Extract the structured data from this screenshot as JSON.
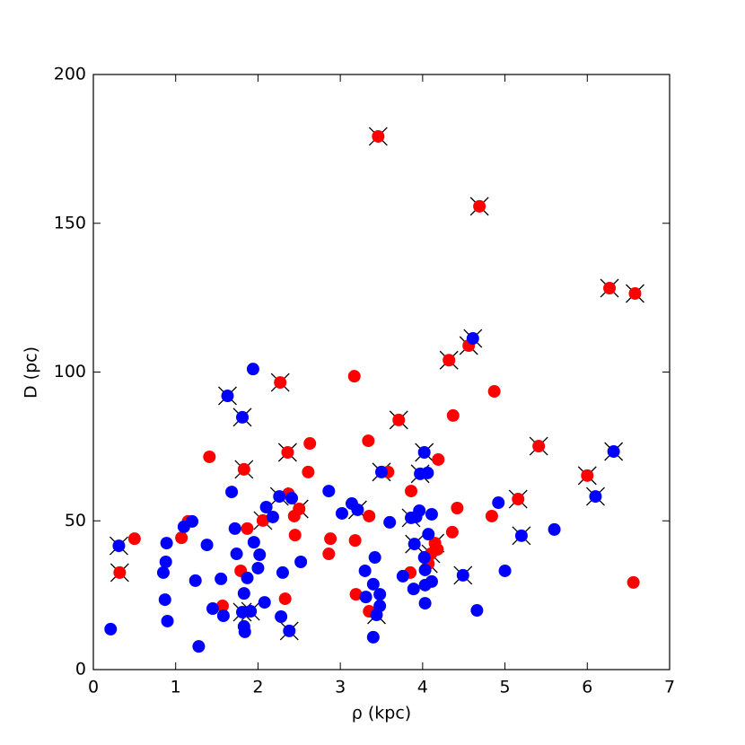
{
  "chart_data": {
    "type": "scatter",
    "xlabel": "ρ (kpc)",
    "ylabel": "D (pc)",
    "xlim": [
      0,
      7
    ],
    "xticks": [
      0,
      1,
      2,
      3,
      4,
      5,
      6,
      7
    ],
    "ylim": [
      0,
      200
    ],
    "yticks": [
      0,
      50,
      100,
      150,
      200
    ],
    "series": [
      {
        "color": "#ff0000",
        "marker": "o",
        "x": [
          0.32,
          0.5,
          1.07,
          1.15,
          1.41,
          1.57,
          1.79,
          1.83,
          1.87,
          2.06,
          2.27,
          2.33,
          2.36,
          2.37,
          2.44,
          2.45,
          2.5,
          2.61,
          2.63,
          2.86,
          2.88,
          3.17,
          3.18,
          3.19,
          3.34,
          3.35,
          3.35,
          3.46,
          3.58,
          3.71,
          3.85,
          3.86,
          4.07,
          4.1,
          4.15,
          4.18,
          4.19,
          4.32,
          4.36,
          4.37,
          4.42,
          4.56,
          4.69,
          4.84,
          4.87,
          5.16,
          5.41,
          6.0,
          6.27,
          6.56,
          6.58
        ],
        "values": [
          32.6,
          44,
          44.3,
          49.8,
          71.5,
          21.4,
          33.2,
          67.3,
          47.4,
          50.1,
          96.5,
          23.8,
          73,
          59.1,
          51.6,
          45.2,
          54,
          66.4,
          76,
          38.9,
          44,
          98.6,
          43.4,
          25.3,
          76.9,
          51.6,
          19.6,
          179.2,
          66.4,
          83.9,
          32.6,
          60,
          35.6,
          38.9,
          42.5,
          40.4,
          70.6,
          104,
          46.2,
          85.4,
          54.3,
          108.9,
          155.7,
          51.6,
          93.5,
          57.3,
          75.1,
          65.2,
          128.2,
          29.3,
          126.4
        ]
      },
      {
        "color": "#0000ff",
        "marker": "o",
        "x": [
          0.21,
          0.31,
          0.85,
          0.88,
          0.89,
          0.87,
          0.9,
          1.1,
          1.2,
          1.24,
          1.28,
          1.38,
          1.45,
          1.55,
          1.58,
          1.63,
          1.68,
          1.72,
          1.74,
          1.81,
          1.83,
          1.81,
          1.83,
          1.84,
          1.87,
          1.91,
          1.94,
          1.95,
          2.02,
          2.0,
          2.08,
          2.1,
          2.18,
          2.26,
          2.3,
          2.28,
          2.38,
          2.41,
          2.52,
          2.86,
          3.02,
          3.14,
          3.21,
          3.3,
          3.31,
          3.4,
          3.42,
          3.44,
          3.48,
          3.48,
          3.4,
          3.5,
          3.6,
          3.76,
          3.86,
          3.9,
          3.92,
          3.96,
          3.89,
          3.97,
          4.02,
          4.06,
          4.02,
          4.03,
          4.03,
          4.03,
          4.07,
          4.11,
          4.11,
          4.49,
          4.61,
          4.66,
          4.92,
          5.0,
          5.2,
          5.6,
          6.1,
          6.32
        ],
        "values": [
          13.6,
          41.6,
          32.6,
          36.2,
          42.5,
          23.5,
          16.3,
          48,
          49.8,
          29.9,
          7.8,
          41.9,
          20.5,
          30.5,
          18.1,
          92,
          59.7,
          47.4,
          38.9,
          84.8,
          25.6,
          19.3,
          14.5,
          12.7,
          30.8,
          19.6,
          101,
          42.8,
          38.6,
          34.1,
          22.6,
          54.6,
          51.3,
          58.2,
          32.6,
          17.8,
          13,
          57.6,
          36.2,
          60,
          52.5,
          55.8,
          53.7,
          33.2,
          24.4,
          28.7,
          37.7,
          18.4,
          21.4,
          25.3,
          10.9,
          66.4,
          49.5,
          31.4,
          51,
          42.2,
          51.3,
          53.4,
          27.1,
          65.8,
          73,
          66.1,
          37.7,
          28.4,
          33.5,
          22.3,
          45.5,
          52.2,
          29.6,
          31.7,
          111.3,
          19.9,
          56.1,
          33.2,
          45,
          47.1,
          58.2,
          73.3
        ]
      },
      {
        "color": "#000000",
        "marker": "x",
        "x": [
          0.32,
          1.83,
          2.06,
          2.27,
          2.36,
          2.5,
          3.46,
          3.71,
          4.07,
          4.1,
          4.15,
          4.32,
          4.56,
          4.69,
          5.16,
          5.41,
          6.0,
          6.27,
          6.58,
          0.31,
          1.63,
          1.81,
          1.81,
          1.91,
          2.26,
          2.38,
          3.21,
          3.44,
          3.5,
          3.86,
          3.9,
          3.97,
          4.02,
          4.49,
          4.61,
          5.2,
          6.1,
          6.32
        ],
        "values": [
          32.6,
          67.3,
          50.1,
          96.5,
          73,
          54,
          179.2,
          83.9,
          35.6,
          38.9,
          42.5,
          104,
          108.9,
          155.7,
          57.3,
          75.1,
          65.2,
          128.2,
          126.4,
          41.6,
          92,
          84.8,
          19.3,
          19.6,
          58.2,
          13,
          53.7,
          18.4,
          66.4,
          51,
          42.2,
          65.8,
          73,
          31.7,
          111.3,
          45,
          58.2,
          73.3
        ]
      }
    ]
  }
}
